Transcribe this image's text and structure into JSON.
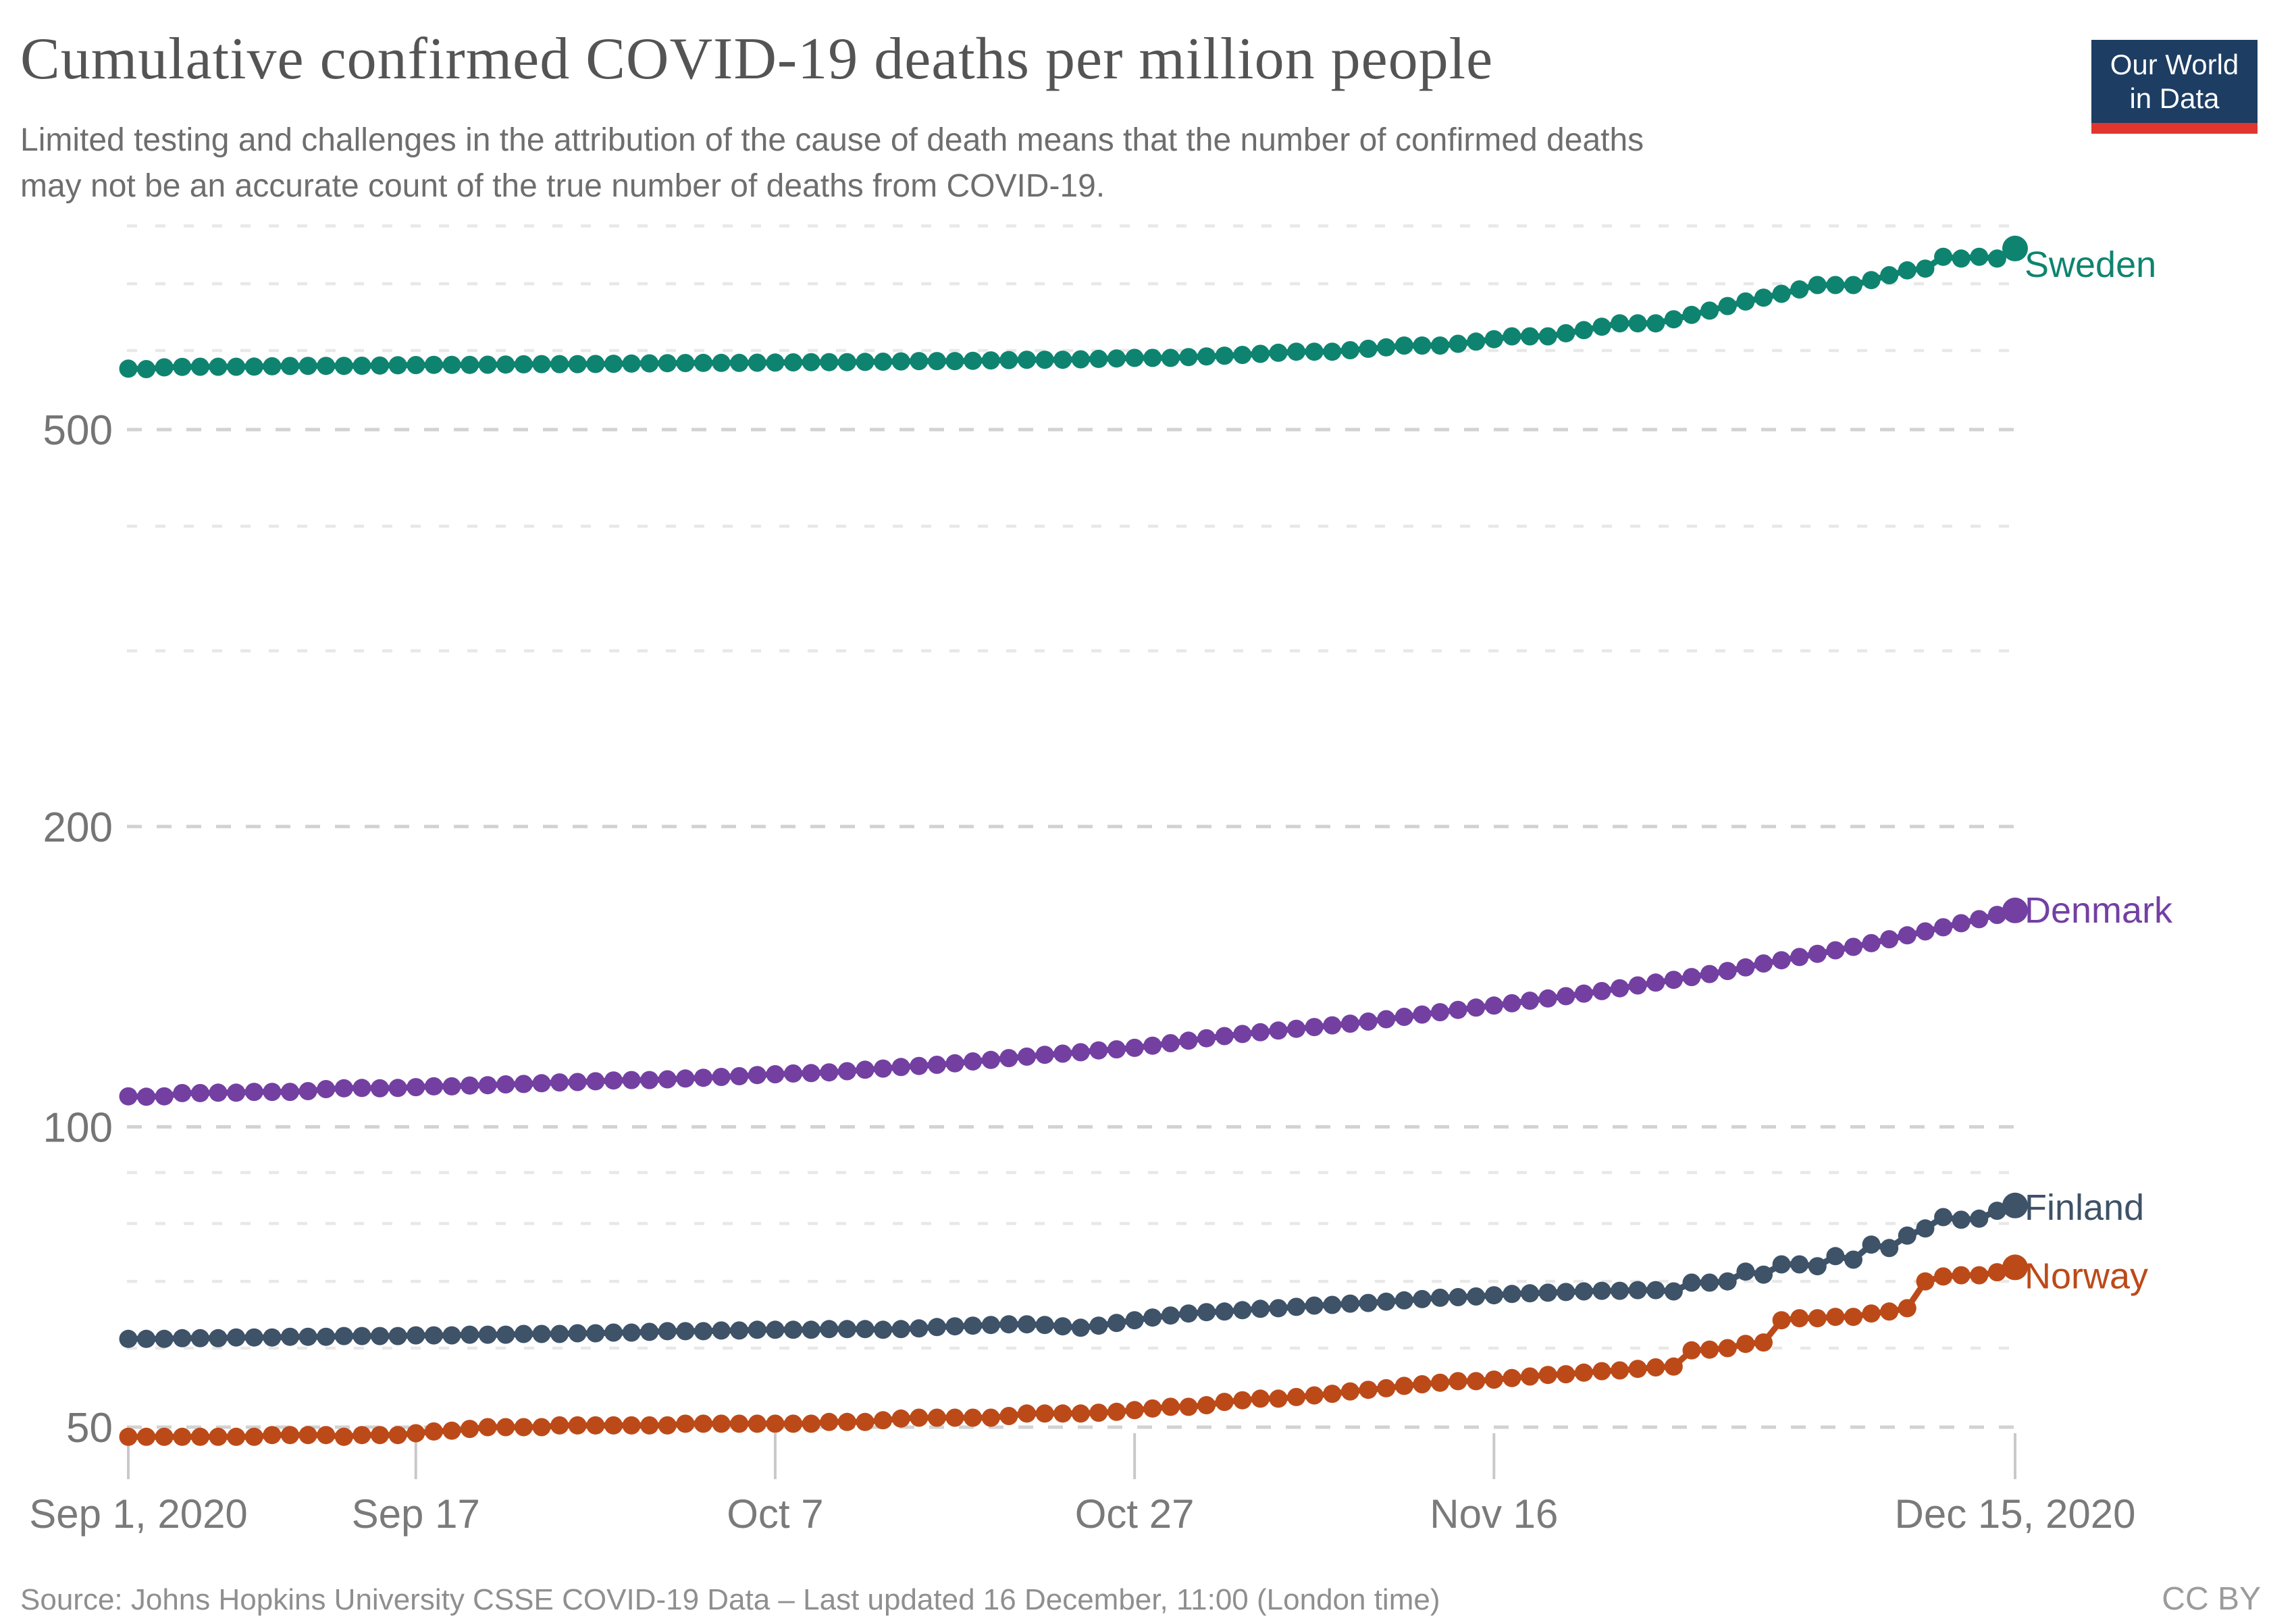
{
  "header": {
    "title": "Cumulative confirmed COVID-19 deaths per million people",
    "subtitle_line1": "Limited testing and challenges in the attribution of the cause of death means that the number of confirmed deaths",
    "subtitle_line2": "may not be an accurate count of the true number of deaths from COVID-19."
  },
  "logo": {
    "line1": "Our World",
    "line2": "in Data",
    "bg_color": "#1d3d63",
    "accent_color": "#e0362e"
  },
  "footer": {
    "source": "Source: Johns Hopkins University CSSE COVID-19 Data – Last updated 16 December, 11:00 (London time)",
    "license": "CC BY"
  },
  "chart_data": {
    "type": "line",
    "title": "Cumulative confirmed COVID-19 deaths per million people",
    "x_start_date": "Sep 1, 2020",
    "x_end_date": "Dec 15, 2020",
    "x_unit": "day",
    "x_range_days": 105,
    "y_scale": "log",
    "ylim": [
      46,
      820
    ],
    "grid": true,
    "y_ticks": [
      50,
      100,
      200,
      500
    ],
    "y_minor_gridlines": [
      60,
      70,
      80,
      90,
      300,
      400,
      600,
      700,
      800
    ],
    "x_tick_labels": [
      {
        "label": "Sep 1, 2020",
        "day": 0
      },
      {
        "label": "Sep 17",
        "day": 16
      },
      {
        "label": "Oct 7",
        "day": 36
      },
      {
        "label": "Oct 27",
        "day": 56
      },
      {
        "label": "Nov 16",
        "day": 76
      },
      {
        "label": "Dec 15, 2020",
        "day": 105
      }
    ],
    "legend_position": "right-end-labels",
    "series": [
      {
        "name": "Sweden",
        "color": "#0e8470",
        "values": [
          575.5,
          574.9,
          577.2,
          577.8,
          578,
          578,
          578,
          578.2,
          578.6,
          579,
          579.2,
          579.2,
          579.2,
          579.4,
          579.6,
          580,
          580.3,
          580.5,
          580.5,
          580.5,
          580.7,
          581,
          581.3,
          581.5,
          581.5,
          581.5,
          581.7,
          582,
          582.3,
          582.5,
          582.8,
          583,
          583.2,
          583.2,
          583.2,
          583.4,
          583.6,
          583.9,
          584.2,
          584.2,
          584.2,
          584.5,
          584.8,
          585.2,
          585.6,
          585.6,
          585.6,
          586,
          586.5,
          587,
          587.5,
          587.5,
          587.5,
          588,
          588.6,
          589.2,
          589.9,
          589.9,
          589.9,
          591,
          592,
          593,
          594,
          595.5,
          597,
          598.5,
          598.5,
          598.5,
          600.5,
          602.5,
          604.5,
          607,
          607,
          607,
          609.5,
          612.5,
          616,
          620,
          620,
          620,
          624.5,
          629,
          634,
          639,
          639,
          639,
          645,
          651.5,
          658,
          665,
          672,
          678,
          684,
          691,
          698,
          698,
          698,
          706,
          714,
          722,
          725,
          745,
          742,
          745,
          742,
          759.4
        ]
      },
      {
        "name": "Denmark",
        "color": "#7340a2",
        "values": [
          107.3,
          107.2,
          107.3,
          108.1,
          108.1,
          108.2,
          108.2,
          108.4,
          108.4,
          108.4,
          108.6,
          109.1,
          109.3,
          109.4,
          109.3,
          109.4,
          109.6,
          109.8,
          109.8,
          110,
          110.1,
          110.3,
          110.4,
          110.6,
          110.8,
          110.9,
          111.1,
          111.3,
          111.4,
          111.4,
          111.6,
          111.8,
          112,
          112.2,
          112.4,
          112.7,
          112.9,
          113.1,
          113.2,
          113.4,
          113.7,
          114.1,
          114.4,
          114.8,
          115.1,
          115.4,
          115.8,
          116.3,
          116.7,
          117.2,
          117.6,
          118.1,
          118.4,
          118.8,
          119.3,
          119.6,
          120,
          120.6,
          121.3,
          122,
          122.7,
          123.3,
          123.9,
          124.4,
          124.9,
          125.4,
          125.9,
          126.4,
          126.9,
          127.5,
          128.2,
          128.9,
          129.6,
          130.3,
          131,
          131.7,
          132.3,
          133,
          133.8,
          134.5,
          135.2,
          136,
          136.8,
          137.7,
          138.6,
          139.5,
          140.4,
          141.3,
          142.3,
          143.3,
          144.5,
          145.8,
          146.9,
          148,
          149.1,
          150.3,
          151.5,
          152.8,
          154.2,
          155.6,
          157,
          158.5,
          160,
          161.5,
          163.1,
          164.8
        ]
      },
      {
        "name": "Finland",
        "color": "#3e5268",
        "values": [
          61.3,
          61.3,
          61.3,
          61.4,
          61.4,
          61.4,
          61.5,
          61.5,
          61.5,
          61.6,
          61.6,
          61.6,
          61.7,
          61.7,
          61.7,
          61.7,
          61.8,
          61.8,
          61.8,
          61.9,
          61.9,
          61.9,
          62,
          62,
          62,
          62.1,
          62.1,
          62.2,
          62.2,
          62.3,
          62.4,
          62.4,
          62.4,
          62.5,
          62.5,
          62.6,
          62.6,
          62.6,
          62.6,
          62.7,
          62.7,
          62.7,
          62.6,
          62.7,
          62.8,
          63,
          63.1,
          63.2,
          63.3,
          63.4,
          63.4,
          63.3,
          63.1,
          62.9,
          63.2,
          63.6,
          64,
          64.4,
          64.7,
          65,
          65.2,
          65.3,
          65.5,
          65.7,
          65.8,
          66,
          66.2,
          66.3,
          66.5,
          66.6,
          66.8,
          67,
          67.2,
          67.4,
          67.5,
          67.6,
          67.8,
          68,
          68.1,
          68.2,
          68.3,
          68.4,
          68.5,
          68.5,
          68.6,
          68.6,
          68.4,
          69.8,
          69.8,
          70,
          71.6,
          71.1,
          72.8,
          72.8,
          72.5,
          74.2,
          73.6,
          76.2,
          75.6,
          77.8,
          79.1,
          81.2,
          80.7,
          80.9,
          82.4,
          83.4
        ]
      },
      {
        "name": "Norway",
        "color": "#bc4a19",
        "values": [
          48.9,
          48.9,
          48.9,
          48.9,
          48.9,
          48.9,
          48.9,
          48.9,
          49.1,
          49.1,
          49.1,
          49.1,
          48.9,
          49.1,
          49.1,
          49.1,
          49.3,
          49.5,
          49.6,
          49.8,
          50,
          50,
          50,
          50,
          50.2,
          50.2,
          50.2,
          50.2,
          50.2,
          50.2,
          50.2,
          50.4,
          50.4,
          50.4,
          50.4,
          50.4,
          50.4,
          50.4,
          50.4,
          50.6,
          50.6,
          50.6,
          50.8,
          51,
          51.1,
          51.1,
          51.1,
          51.1,
          51.1,
          51.3,
          51.6,
          51.6,
          51.6,
          51.6,
          51.7,
          51.8,
          52,
          52.2,
          52.4,
          52.4,
          52.6,
          53,
          53.2,
          53.4,
          53.4,
          53.6,
          53.8,
          54,
          54.3,
          54.5,
          54.7,
          55,
          55.2,
          55.4,
          55.6,
          55.6,
          55.8,
          56,
          56.2,
          56.4,
          56.5,
          56.7,
          56.9,
          57,
          57.2,
          57.4,
          57.5,
          59.7,
          59.8,
          60,
          60.6,
          60.8,
          64,
          64.3,
          64.3,
          64.5,
          64.5,
          65,
          65.3,
          65.8,
          70,
          70.8,
          71,
          71,
          71.5,
          72.3
        ]
      }
    ]
  }
}
